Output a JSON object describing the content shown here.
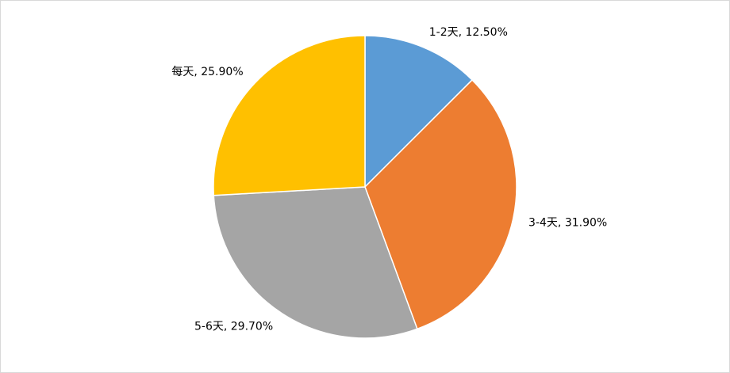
{
  "chart_data": {
    "type": "pie",
    "values": [
      12.5,
      31.9,
      29.7,
      25.9
    ],
    "value_labels": [
      "1-2天, 12.50%",
      "3-4天, 31.90%",
      "5-6天, 29.70%",
      "每天, 25.90%"
    ],
    "colors": [
      "#5b9bd5",
      "#ed7d31",
      "#a5a5a5",
      "#ffc000"
    ]
  }
}
